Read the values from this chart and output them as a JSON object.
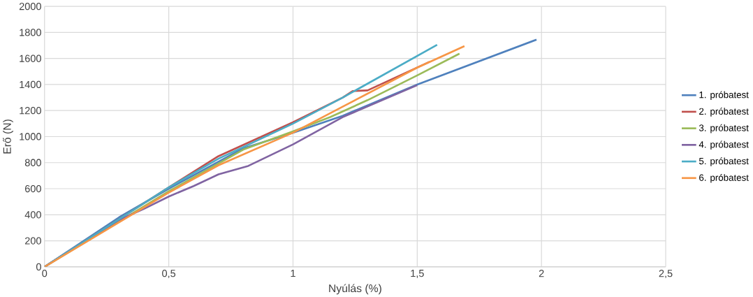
{
  "chart_data": {
    "type": "line",
    "xlabel": "Nyúlás (%)",
    "ylabel": "Erő (N)",
    "xlim": [
      0,
      2.5
    ],
    "ylim": [
      0,
      2000
    ],
    "xticks": [
      0,
      {
        "value": 0.5,
        "label": "0,5"
      },
      1,
      {
        "value": 1.5,
        "label": "1,5"
      },
      2,
      {
        "value": 2.5,
        "label": "2,5"
      }
    ],
    "yticks": [
      0,
      200,
      400,
      600,
      800,
      1000,
      1200,
      1400,
      1600,
      1800,
      2000
    ],
    "grid": true,
    "legend": "right",
    "marker": "none",
    "series": [
      {
        "name": "1. próbatest",
        "color": "#4f81bd",
        "x": [
          0,
          0.3,
          0.5,
          0.8,
          1.0,
          1.2,
          1.5,
          1.98
        ],
        "values": [
          0,
          380,
          600,
          910,
          1030,
          1160,
          1400,
          1745
        ]
      },
      {
        "name": "2. próbatest",
        "color": "#c0504d",
        "x": [
          0,
          0.5,
          0.7,
          1.0,
          1.2,
          1.24,
          1.3,
          1.55
        ],
        "values": [
          0,
          610,
          850,
          1110,
          1300,
          1350,
          1355,
          1575
        ]
      },
      {
        "name": "3. próbatest",
        "color": "#9bbb59",
        "x": [
          0,
          0.5,
          0.8,
          1.0,
          1.15,
          1.3,
          1.5,
          1.67
        ],
        "values": [
          0,
          580,
          900,
          1040,
          1150,
          1280,
          1470,
          1637
        ]
      },
      {
        "name": "4. próbatest",
        "color": "#8064a2",
        "x": [
          0,
          0.3,
          0.4,
          0.5,
          0.6,
          0.7,
          0.82,
          1.0,
          1.2,
          1.5
        ],
        "values": [
          0,
          360,
          445,
          540,
          620,
          710,
          775,
          940,
          1150,
          1395
        ]
      },
      {
        "name": "5. próbatest",
        "color": "#4bacc6",
        "x": [
          0,
          0.5,
          0.7,
          1.0,
          1.2,
          1.58
        ],
        "values": [
          0,
          610,
          830,
          1100,
          1300,
          1705
        ]
      },
      {
        "name": "6. próbatest",
        "color": "#f79646",
        "x": [
          0,
          0.5,
          0.7,
          1.0,
          1.2,
          1.5,
          1.69
        ],
        "values": [
          0,
          570,
          780,
          1030,
          1230,
          1530,
          1695
        ]
      }
    ]
  }
}
